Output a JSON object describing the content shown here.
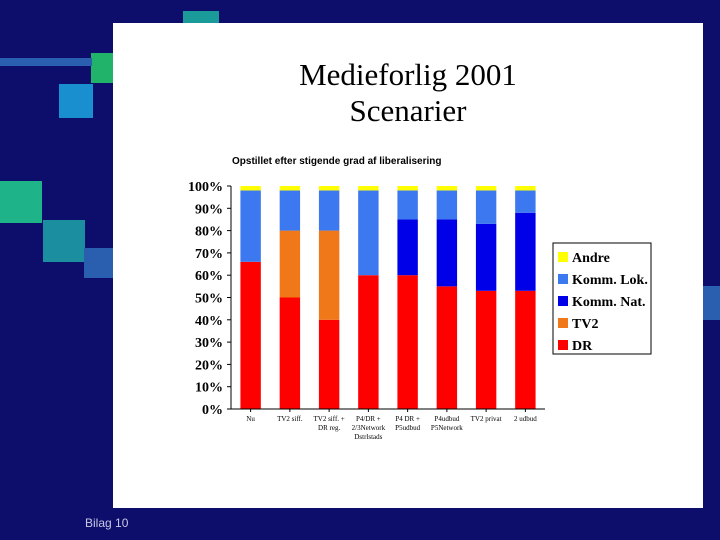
{
  "slide": {
    "title_line1": "Medieforlig 2001",
    "title_line2": "Scenarier",
    "subtitle": "Opstillet efter stigende grad af liberalisering",
    "footer": "Bilag 10"
  },
  "colors": {
    "background": "#0d0d6b",
    "Andre": "#ffff00",
    "Komm. Lok.": "#3c78f0",
    "Komm. Nat.": "#0000e8",
    "TV2": "#f07818",
    "DR": "#ff0000"
  },
  "chart_data": {
    "type": "bar",
    "stacked": true,
    "categories": [
      [
        "Nu"
      ],
      [
        "TV2 siff."
      ],
      [
        "TV2 siff. +",
        "DR reg."
      ],
      [
        "P4/DR +",
        "2/3Network",
        "Dstrlstads"
      ],
      [
        "P4 DR +",
        "P5udbud"
      ],
      [
        "P4udbud",
        "P5Network"
      ],
      [
        "TV2 privat"
      ],
      [
        "2 udbud"
      ]
    ],
    "series": [
      {
        "name": "DR",
        "values": [
          66,
          50,
          40,
          60,
          60,
          55,
          53,
          53
        ]
      },
      {
        "name": "TV2",
        "values": [
          0,
          30,
          40,
          0,
          0,
          0,
          0,
          0
        ]
      },
      {
        "name": "Komm. Nat.",
        "values": [
          0,
          0,
          0,
          0,
          25,
          30,
          30,
          35
        ]
      },
      {
        "name": "Komm. Lok.",
        "values": [
          32,
          18,
          18,
          38,
          13,
          13,
          15,
          10
        ]
      },
      {
        "name": "Andre",
        "values": [
          2,
          2,
          2,
          2,
          2,
          2,
          2,
          2
        ]
      }
    ],
    "legend": [
      "Andre",
      "Komm. Lok.",
      "Komm. Nat.",
      "TV2",
      "DR"
    ],
    "legend_position": "right",
    "yticks": [
      "0%",
      "10%",
      "20%",
      "30%",
      "40%",
      "50%",
      "60%",
      "70%",
      "80%",
      "90%",
      "100%"
    ],
    "ylim": [
      0,
      100
    ],
    "xlabel": "",
    "ylabel": ""
  }
}
